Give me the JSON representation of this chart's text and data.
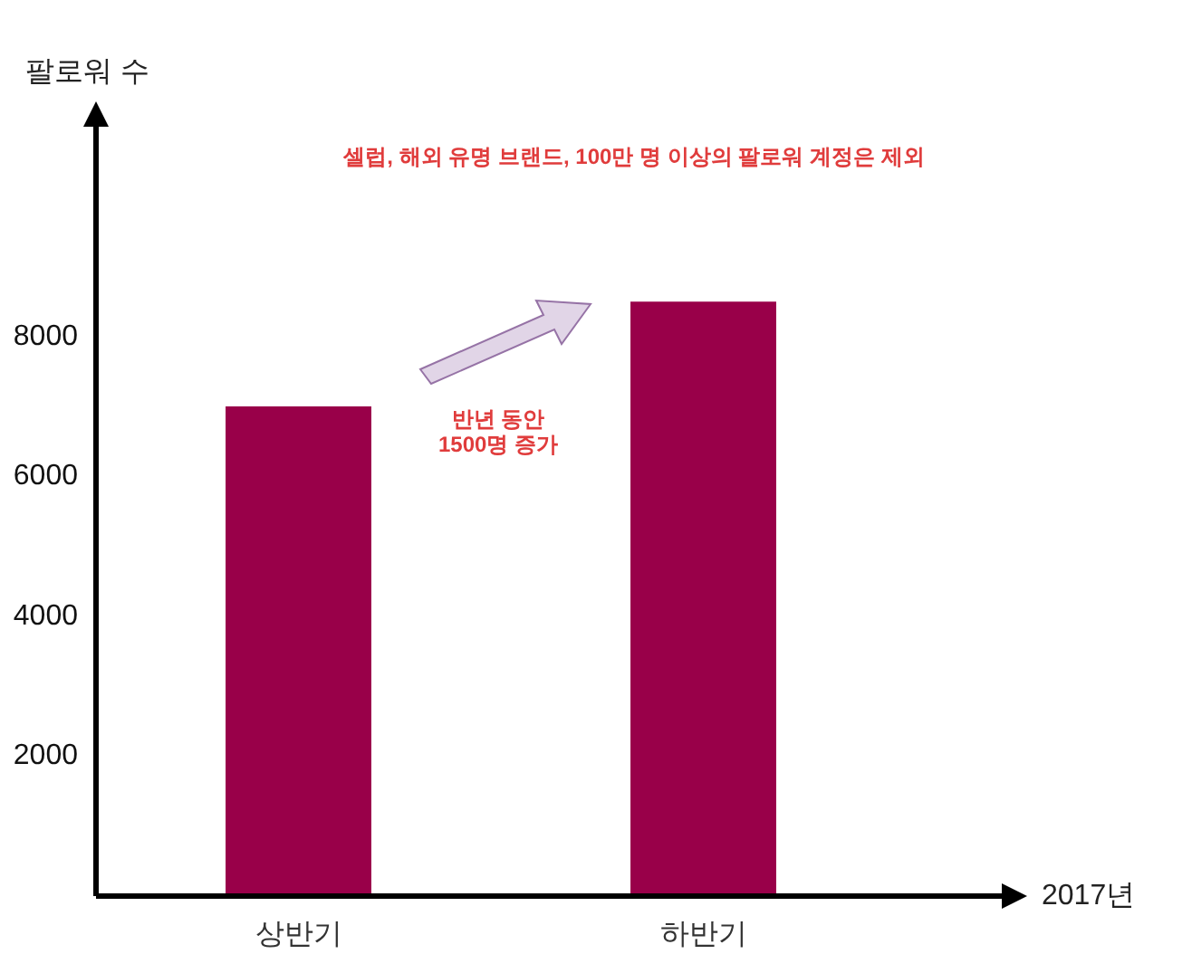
{
  "chart_data": {
    "type": "bar",
    "ylabel": "팔로워 수",
    "xlabel": "2017년",
    "annotations": [
      "셀럽, 해외 유명 브랜드, 100만 명 이상의 팔로워 계정은 제외",
      "반년 동안\n1500명 증가"
    ],
    "categories": [
      "상반기",
      "하반기"
    ],
    "values": [
      7000,
      8500
    ],
    "color": "#990049",
    "ylim": [
      0,
      11000
    ],
    "yticks": [
      2000,
      4000,
      6000,
      8000
    ]
  }
}
